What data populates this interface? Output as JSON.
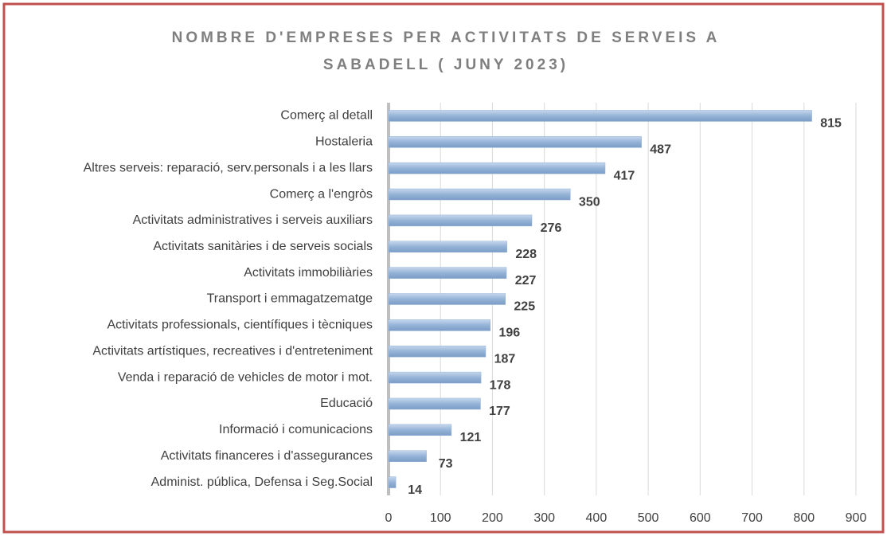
{
  "chart_data": {
    "type": "bar",
    "orientation": "horizontal",
    "title": [
      "NOMBRE D'EMPRESES PER ACTIVITATS DE  SERVEIS A",
      "SABADELL (  JUNY 2023)"
    ],
    "categories": [
      "Comerç al detall",
      "Hostaleria",
      "Altres serveis: reparació, serv.personals i a les llars",
      "Comerç a l'engròs ",
      "Activitats administratives i serveis auxiliars",
      "Activitats sanitàries i de serveis socials",
      "Activitats immobiliàries",
      "Transport i emmagatzematge",
      "Activitats professionals, científiques i tècniques",
      "Activitats artístiques, recreatives i d'entreteniment",
      "Venda i reparació de vehicles de motor i mot.",
      "Educació",
      "Informació i comunicacions",
      "Activitats financeres i d'assegurances",
      "Administ. pública, Defensa i Seg.Social"
    ],
    "values": [
      815,
      487,
      417,
      350,
      276,
      228,
      227,
      225,
      196,
      187,
      178,
      177,
      121,
      73,
      14
    ],
    "color": "#95b3d7",
    "xlim": [
      0,
      900
    ],
    "xticks": [
      0,
      100,
      200,
      300,
      400,
      500,
      600,
      700,
      800,
      900
    ],
    "grid": true
  }
}
